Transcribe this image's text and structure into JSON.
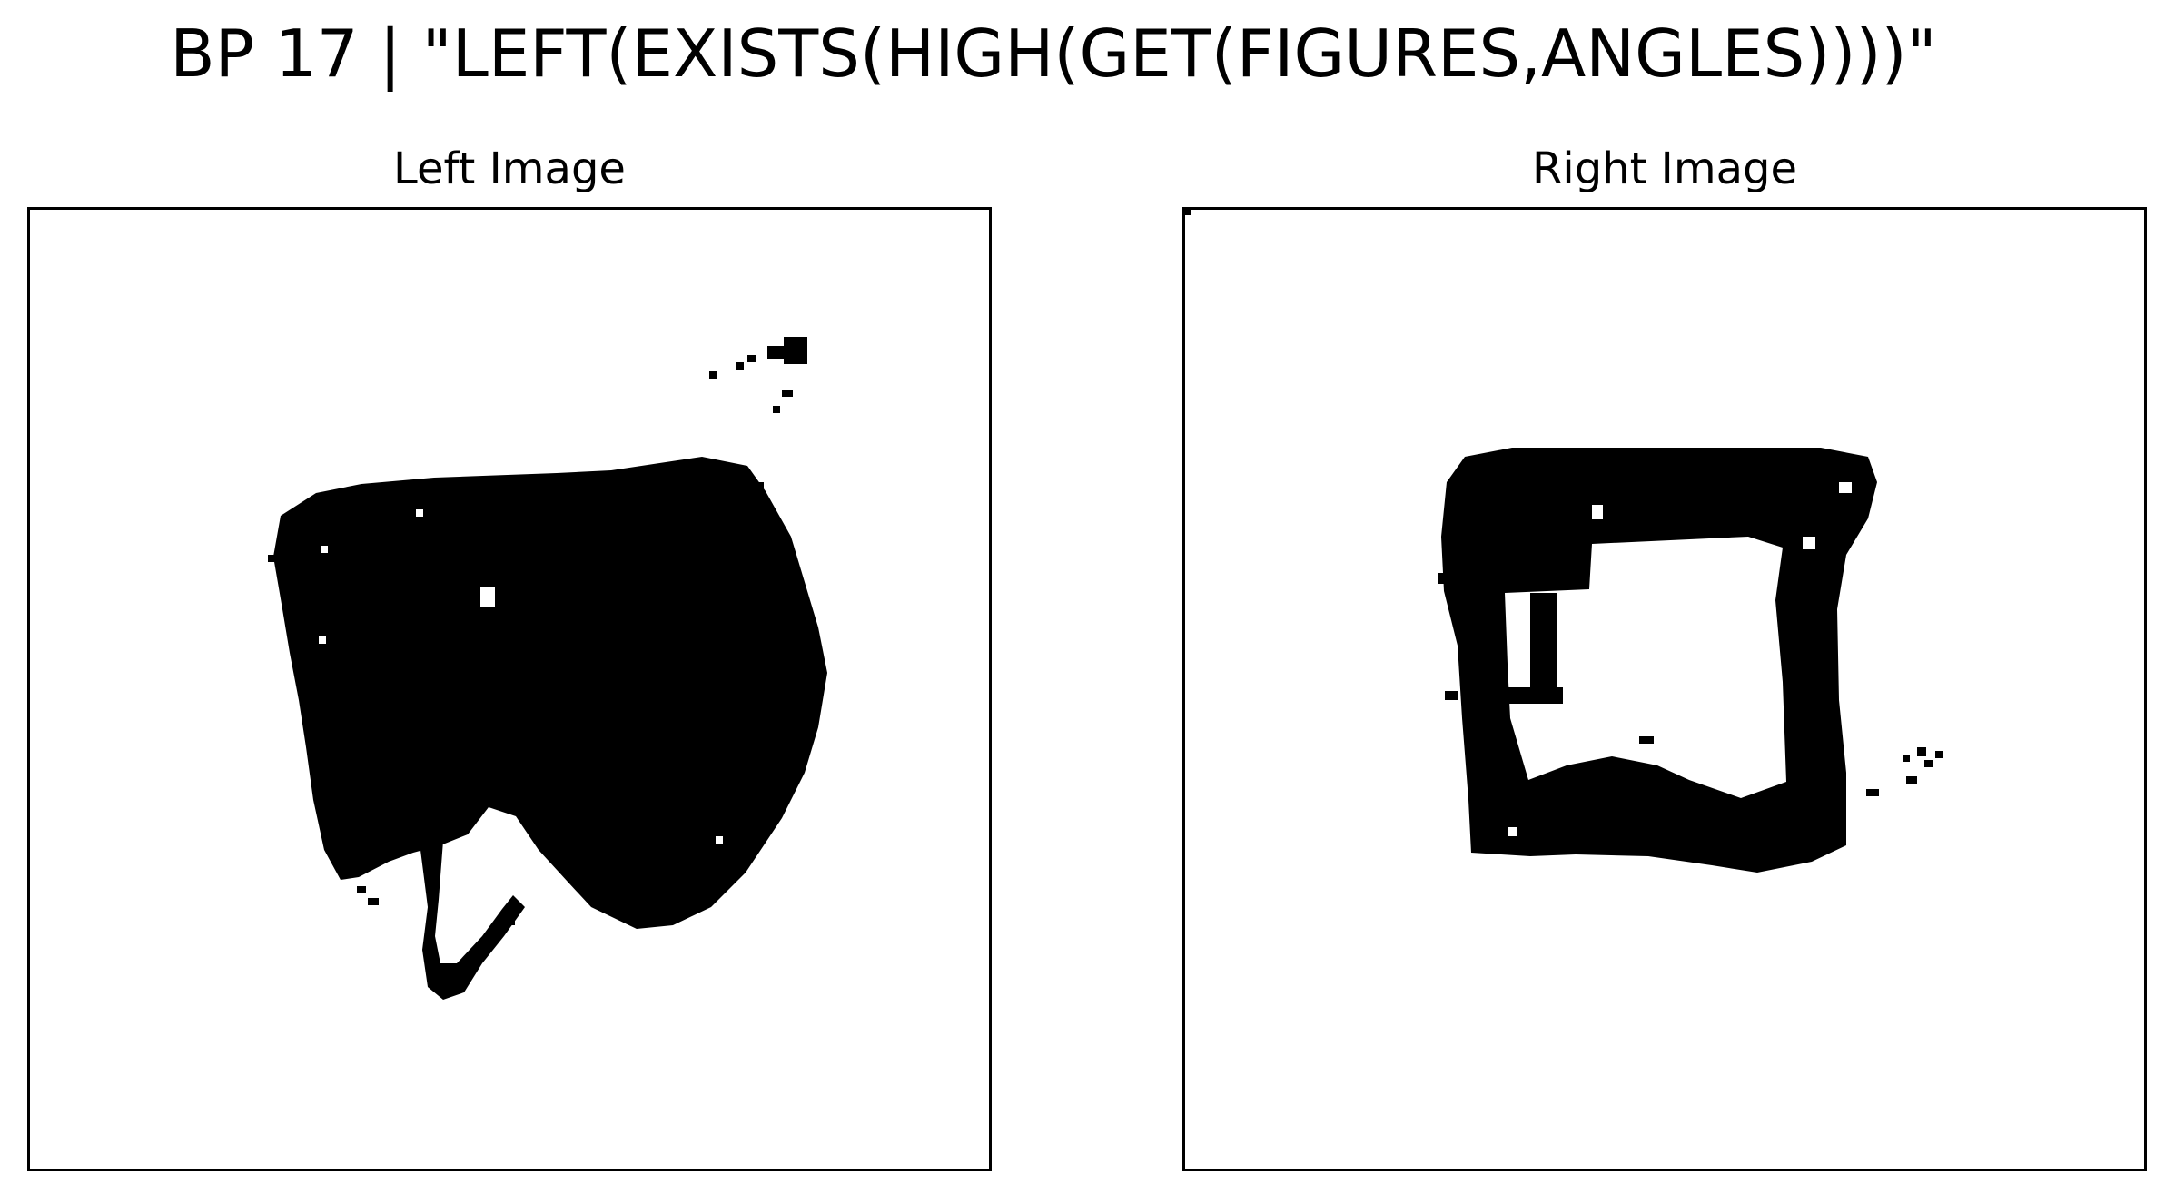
{
  "title": "BP 17 | \"LEFT(EXISTS(HIGH(GET(FIGURES,ANGLES))))\"",
  "panels": {
    "left": {
      "title": "Left Image"
    },
    "right": {
      "title": "Right Image"
    }
  },
  "colors": {
    "background": "#ffffff",
    "ink": "#000000"
  }
}
